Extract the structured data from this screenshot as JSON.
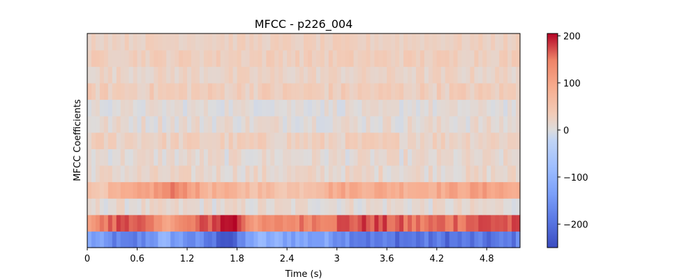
{
  "chart_data": {
    "type": "heatmap",
    "title": "MFCC - p226_004",
    "xlabel": "Time (s)",
    "ylabel": "MFCC Coefficients",
    "xlim": [
      0,
      5.2
    ],
    "x_ticks": [
      0,
      0.6,
      1.2,
      1.8,
      2.4,
      3,
      3.6,
      4.2,
      4.8
    ],
    "x_tick_labels": [
      "0",
      "0.6",
      "1.2",
      "1.8",
      "2.4",
      "3",
      "3.6",
      "4.2",
      "4.8"
    ],
    "n_coefficients": 13,
    "n_frames": 104,
    "colormap": "coolwarm",
    "colorbar": {
      "vmin": -250,
      "vmax": 205,
      "ticks": [
        200,
        100,
        0,
        -100,
        -200
      ],
      "tick_labels": [
        "200",
        "100",
        "0",
        "−100",
        "−200"
      ]
    },
    "coefficient_profiles": [
      {
        "coefficient": 0,
        "mean": -150,
        "spread": 45,
        "keyframes": [
          [
            0,
            -120
          ],
          [
            0.5,
            -205
          ],
          [
            0.9,
            -110
          ],
          [
            1.35,
            -175
          ],
          [
            1.75,
            -235
          ],
          [
            2.0,
            -105
          ],
          [
            3.0,
            -140
          ],
          [
            3.4,
            -190
          ],
          [
            4.0,
            -195
          ],
          [
            4.9,
            -200
          ],
          [
            5.2,
            -180
          ]
        ]
      },
      {
        "coefficient": 1,
        "mean": 130,
        "spread": 30,
        "keyframes": [
          [
            0,
            120
          ],
          [
            0.5,
            185
          ],
          [
            0.9,
            110
          ],
          [
            1.3,
            150
          ],
          [
            1.75,
            210
          ],
          [
            2.0,
            120
          ],
          [
            3.0,
            165
          ],
          [
            3.4,
            175
          ],
          [
            4.0,
            150
          ],
          [
            4.9,
            175
          ],
          [
            5.2,
            160
          ]
        ]
      },
      {
        "coefficient": 2,
        "mean": 10,
        "spread": 25,
        "keyframes": [
          [
            0,
            10
          ],
          [
            5.2,
            10
          ]
        ]
      },
      {
        "coefficient": 3,
        "mean": 55,
        "spread": 30,
        "keyframes": [
          [
            0,
            40
          ],
          [
            0.6,
            85
          ],
          [
            1.1,
            150
          ],
          [
            1.4,
            80
          ],
          [
            2.5,
            50
          ],
          [
            3.0,
            95
          ],
          [
            4.1,
            90
          ],
          [
            4.9,
            110
          ],
          [
            5.2,
            80
          ]
        ]
      },
      {
        "coefficient": 4,
        "mean": 15,
        "spread": 25,
        "keyframes": [
          [
            0,
            15
          ],
          [
            5.2,
            15
          ]
        ]
      },
      {
        "coefficient": 5,
        "mean": 10,
        "spread": 25,
        "keyframes": [
          [
            0,
            10
          ],
          [
            5.2,
            10
          ]
        ]
      },
      {
        "coefficient": 6,
        "mean": 25,
        "spread": 25,
        "keyframes": [
          [
            0,
            25
          ],
          [
            5.2,
            25
          ]
        ]
      },
      {
        "coefficient": 7,
        "mean": 10,
        "spread": 25,
        "keyframes": [
          [
            0,
            10
          ],
          [
            5.2,
            10
          ]
        ]
      },
      {
        "coefficient": 8,
        "mean": 5,
        "spread": 20,
        "keyframes": [
          [
            0,
            5
          ],
          [
            5.2,
            5
          ]
        ]
      },
      {
        "coefficient": 9,
        "mean": 30,
        "spread": 25,
        "keyframes": [
          [
            0,
            30
          ],
          [
            5.2,
            30
          ]
        ]
      },
      {
        "coefficient": 10,
        "mean": 20,
        "spread": 20,
        "keyframes": [
          [
            0,
            20
          ],
          [
            5.2,
            20
          ]
        ]
      },
      {
        "coefficient": 11,
        "mean": 30,
        "spread": 20,
        "keyframes": [
          [
            0,
            30
          ],
          [
            5.2,
            30
          ]
        ]
      },
      {
        "coefficient": 12,
        "mean": 25,
        "spread": 15,
        "keyframes": [
          [
            0,
            25
          ],
          [
            5.2,
            25
          ]
        ]
      }
    ]
  }
}
